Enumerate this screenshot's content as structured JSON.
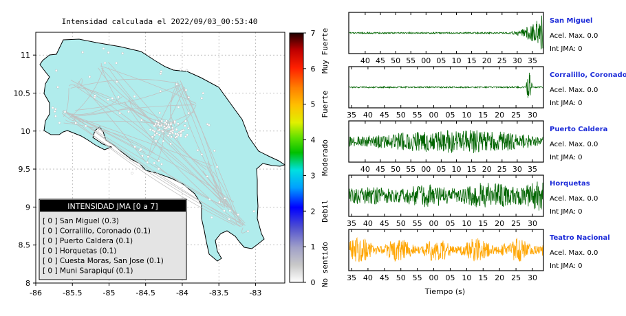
{
  "map": {
    "title": "Intensidad calculada el 2022/09/03_00:53:40",
    "x_ticks": [
      "-86",
      "-85.5",
      "-85",
      "-84.5",
      "-84",
      "-83.5",
      "-83"
    ],
    "y_ticks": [
      "8",
      "8.5",
      "9",
      "9.5",
      "10",
      "10.5",
      "11"
    ],
    "xlim": [
      -86,
      -82.6
    ],
    "ylim": [
      8,
      11.3
    ],
    "land_color": "#b0ecec"
  },
  "legend": {
    "title": "INTENSIDAD JMA [0 a 7]",
    "entries": [
      "[ 0 ]  San Miguel (0.3)",
      "[ 0 ]  Corralillo, Coronado (0.1)",
      "[ 0 ]  Puerto Caldera (0.1)",
      "[ 0 ]  Horquetas (0.1)",
      "[ 0 ]  Cuesta Moras, San Jose (0.1)",
      "[ 0 ]  Muni Sarapiquí (0.1)"
    ]
  },
  "colorbar": {
    "ticks": [
      "0",
      "1",
      "2",
      "3",
      "4",
      "5",
      "6",
      "7"
    ],
    "categories": [
      "No sentido",
      "Debil",
      "Moderado",
      "Fuerte",
      "Muy Fuerte"
    ]
  },
  "chart_data": [
    {
      "type": "line",
      "name": "San Miguel",
      "x_ticks": [
        "40",
        "45",
        "50",
        "55",
        "00",
        "05",
        "10",
        "15",
        "20",
        "25",
        "30",
        "35"
      ],
      "amplitude_profile": "quiet with strong burst at end",
      "color": "#006400",
      "acel_max": "Acel. Max. 0.0",
      "int_jma": "Int JMA: 0"
    },
    {
      "type": "line",
      "name": "Corralillo, Coronado",
      "x_ticks": [
        "35",
        "40",
        "45",
        "50",
        "55",
        "00",
        "05",
        "10",
        "15",
        "20",
        "25",
        "30"
      ],
      "amplitude_profile": "quiet with spike near end",
      "color": "#006400",
      "acel_max": "Acel. Max. 0.0",
      "int_jma": "Int JMA: 0"
    },
    {
      "type": "line",
      "name": "Puerto Caldera",
      "x_ticks": [
        "40",
        "45",
        "50",
        "55",
        "00",
        "05",
        "10",
        "15",
        "20",
        "25",
        "30",
        "35"
      ],
      "amplitude_profile": "moderate noise increasing toward end",
      "color": "#006400",
      "acel_max": "Acel. Max. 0.0",
      "int_jma": "Int JMA: 0"
    },
    {
      "type": "line",
      "name": "Horquetas",
      "x_ticks": [
        "35",
        "40",
        "45",
        "50",
        "55",
        "00",
        "05",
        "10",
        "15",
        "20",
        "25",
        "30"
      ],
      "amplitude_profile": "moderate noise increasing toward end",
      "color": "#006400",
      "acel_max": "Acel. Max. 0.0",
      "int_jma": "Int JMA: 0"
    },
    {
      "type": "line",
      "name": "Teatro Nacional",
      "x_ticks": [
        "35",
        "40",
        "45",
        "50",
        "55",
        "00",
        "05",
        "10",
        "15",
        "20",
        "25",
        "30"
      ],
      "amplitude_profile": "dense noise throughout",
      "color": "#ffa500",
      "acel_max": "Acel. Max. 0.0",
      "int_jma": "Int JMA: 0"
    }
  ],
  "time_axis_label": "Tiempo (s)"
}
